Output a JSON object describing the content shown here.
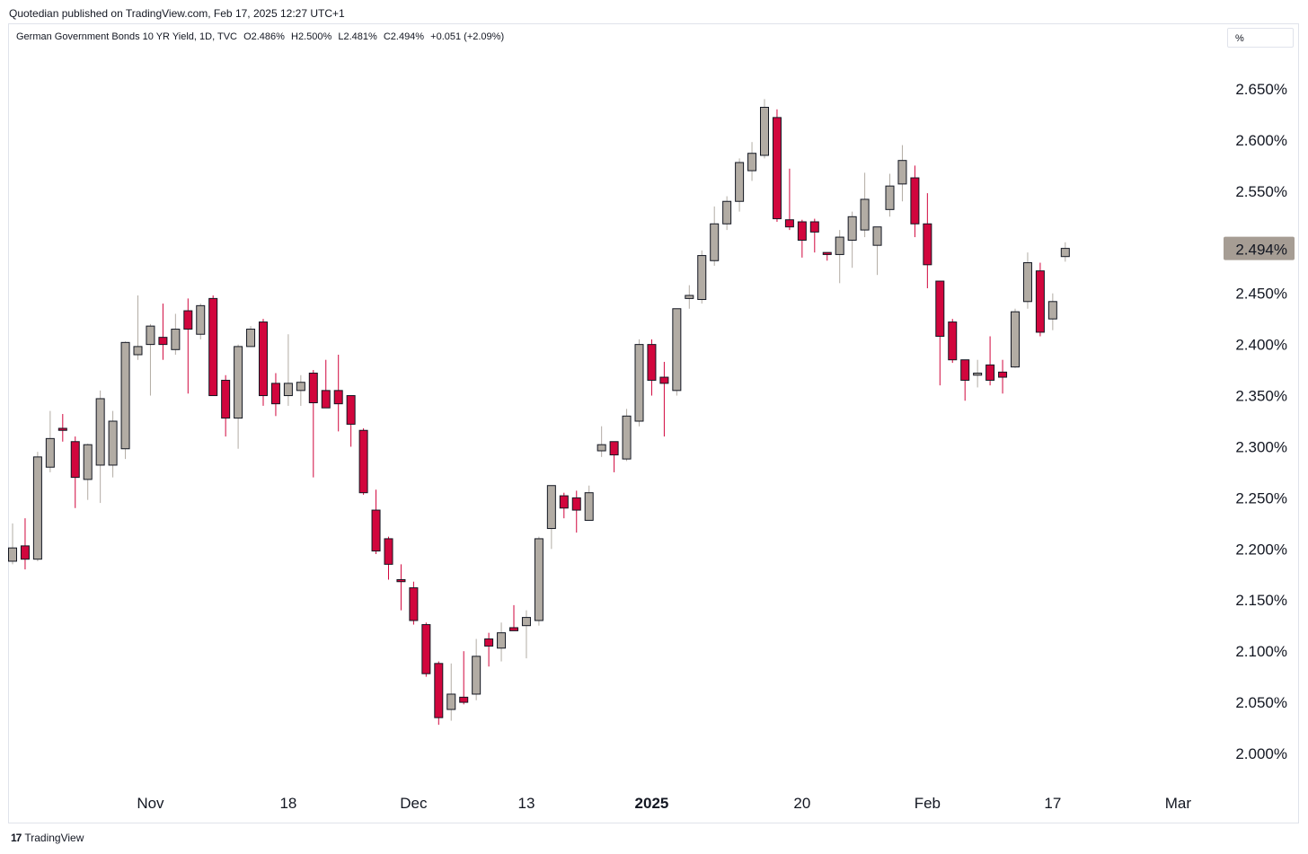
{
  "header": {
    "published_text": "Quotedian published on TradingView.com, Feb 17, 2025 12:27 UTC+1"
  },
  "legend": {
    "symbol": "German Government Bonds 10 YR Yield, 1D, TVC",
    "open": "O2.486%",
    "high": "H2.500%",
    "low": "L2.481%",
    "close": "C2.494%",
    "change": "+0.051 (+2.09%)"
  },
  "unit_selector": {
    "label": "%"
  },
  "footer": {
    "logo_icon": "tradingview-logo-icon",
    "brand": "TradingView"
  },
  "colors": {
    "up": "#b2aca4",
    "down": "#d1063d",
    "outline": "#131722",
    "last_price_bg": "#a69d94"
  },
  "chart_data": {
    "type": "candlestick",
    "y_axis": {
      "ticks": [
        "2.650%",
        "2.600%",
        "2.550%",
        "2.450%",
        "2.400%",
        "2.350%",
        "2.300%",
        "2.250%",
        "2.200%",
        "2.150%",
        "2.100%",
        "2.050%",
        "2.000%"
      ],
      "tick_values": [
        2.65,
        2.6,
        2.55,
        2.45,
        2.4,
        2.35,
        2.3,
        2.25,
        2.2,
        2.15,
        2.1,
        2.05,
        2.0
      ],
      "last_price_label": "2.494%",
      "last_price": 2.494
    },
    "x_axis": {
      "labels": [
        "Nov",
        "18",
        "Dec",
        "13",
        "2025",
        "20",
        "Feb",
        "17",
        "Mar"
      ],
      "label_index": [
        11,
        22,
        32,
        41,
        51,
        63,
        73,
        83,
        93
      ],
      "bold_labels": [
        "2025"
      ]
    },
    "candles": [
      {
        "o": 2.188,
        "h": 2.225,
        "l": 2.185,
        "c": 2.201
      },
      {
        "o": 2.203,
        "h": 2.23,
        "l": 2.18,
        "c": 2.19
      },
      {
        "o": 2.19,
        "h": 2.295,
        "l": 2.188,
        "c": 2.29
      },
      {
        "o": 2.28,
        "h": 2.335,
        "l": 2.275,
        "c": 2.308
      },
      {
        "o": 2.318,
        "h": 2.332,
        "l": 2.305,
        "c": 2.316
      },
      {
        "o": 2.305,
        "h": 2.31,
        "l": 2.24,
        "c": 2.27
      },
      {
        "o": 2.268,
        "h": 2.303,
        "l": 2.248,
        "c": 2.302
      },
      {
        "o": 2.282,
        "h": 2.355,
        "l": 2.245,
        "c": 2.347
      },
      {
        "o": 2.282,
        "h": 2.335,
        "l": 2.27,
        "c": 2.325
      },
      {
        "o": 2.298,
        "h": 2.403,
        "l": 2.288,
        "c": 2.402
      },
      {
        "o": 2.39,
        "h": 2.448,
        "l": 2.385,
        "c": 2.398
      },
      {
        "o": 2.4,
        "h": 2.42,
        "l": 2.35,
        "c": 2.418
      },
      {
        "o": 2.407,
        "h": 2.44,
        "l": 2.385,
        "c": 2.4
      },
      {
        "o": 2.395,
        "h": 2.43,
        "l": 2.39,
        "c": 2.415
      },
      {
        "o": 2.433,
        "h": 2.445,
        "l": 2.352,
        "c": 2.415
      },
      {
        "o": 2.41,
        "h": 2.44,
        "l": 2.405,
        "c": 2.438
      },
      {
        "o": 2.445,
        "h": 2.448,
        "l": 2.35,
        "c": 2.35
      },
      {
        "o": 2.365,
        "h": 2.37,
        "l": 2.31,
        "c": 2.328
      },
      {
        "o": 2.328,
        "h": 2.4,
        "l": 2.298,
        "c": 2.398
      },
      {
        "o": 2.398,
        "h": 2.418,
        "l": 2.398,
        "c": 2.415
      },
      {
        "o": 2.422,
        "h": 2.425,
        "l": 2.34,
        "c": 2.35
      },
      {
        "o": 2.362,
        "h": 2.372,
        "l": 2.33,
        "c": 2.342
      },
      {
        "o": 2.35,
        "h": 2.41,
        "l": 2.34,
        "c": 2.362
      },
      {
        "o": 2.355,
        "h": 2.37,
        "l": 2.34,
        "c": 2.363
      },
      {
        "o": 2.372,
        "h": 2.375,
        "l": 2.27,
        "c": 2.343
      },
      {
        "o": 2.355,
        "h": 2.385,
        "l": 2.34,
        "c": 2.338
      },
      {
        "o": 2.355,
        "h": 2.39,
        "l": 2.315,
        "c": 2.342
      },
      {
        "o": 2.35,
        "h": 2.35,
        "l": 2.3,
        "c": 2.322
      },
      {
        "o": 2.316,
        "h": 2.318,
        "l": 2.253,
        "c": 2.255
      },
      {
        "o": 2.238,
        "h": 2.258,
        "l": 2.195,
        "c": 2.198
      },
      {
        "o": 2.21,
        "h": 2.212,
        "l": 2.17,
        "c": 2.185
      },
      {
        "o": 2.17,
        "h": 2.185,
        "l": 2.14,
        "c": 2.168
      },
      {
        "o": 2.162,
        "h": 2.168,
        "l": 2.126,
        "c": 2.13
      },
      {
        "o": 2.126,
        "h": 2.128,
        "l": 2.075,
        "c": 2.078
      },
      {
        "o": 2.088,
        "h": 2.09,
        "l": 2.028,
        "c": 2.035
      },
      {
        "o": 2.043,
        "h": 2.088,
        "l": 2.032,
        "c": 2.058
      },
      {
        "o": 2.055,
        "h": 2.1,
        "l": 2.048,
        "c": 2.05
      },
      {
        "o": 2.058,
        "h": 2.112,
        "l": 2.052,
        "c": 2.095
      },
      {
        "o": 2.112,
        "h": 2.118,
        "l": 2.085,
        "c": 2.105
      },
      {
        "o": 2.103,
        "h": 2.128,
        "l": 2.09,
        "c": 2.118
      },
      {
        "o": 2.123,
        "h": 2.145,
        "l": 2.12,
        "c": 2.12
      },
      {
        "o": 2.125,
        "h": 2.14,
        "l": 2.093,
        "c": 2.133
      },
      {
        "o": 2.13,
        "h": 2.212,
        "l": 2.125,
        "c": 2.21
      },
      {
        "o": 2.22,
        "h": 2.262,
        "l": 2.2,
        "c": 2.262
      },
      {
        "o": 2.252,
        "h": 2.255,
        "l": 2.23,
        "c": 2.24
      },
      {
        "o": 2.25,
        "h": 2.257,
        "l": 2.216,
        "c": 2.238
      },
      {
        "o": 2.228,
        "h": 2.262,
        "l": 2.228,
        "c": 2.255
      },
      {
        "o": 2.296,
        "h": 2.32,
        "l": 2.29,
        "c": 2.302
      },
      {
        "o": 2.305,
        "h": 2.305,
        "l": 2.275,
        "c": 2.292
      },
      {
        "o": 2.288,
        "h": 2.337,
        "l": 2.286,
        "c": 2.33
      },
      {
        "o": 2.325,
        "h": 2.405,
        "l": 2.32,
        "c": 2.4
      },
      {
        "o": 2.4,
        "h": 2.405,
        "l": 2.35,
        "c": 2.365
      },
      {
        "o": 2.368,
        "h": 2.383,
        "l": 2.31,
        "c": 2.362
      },
      {
        "o": 2.355,
        "h": 2.435,
        "l": 2.35,
        "c": 2.435
      },
      {
        "o": 2.445,
        "h": 2.458,
        "l": 2.435,
        "c": 2.448
      },
      {
        "o": 2.444,
        "h": 2.492,
        "l": 2.44,
        "c": 2.487
      },
      {
        "o": 2.482,
        "h": 2.535,
        "l": 2.477,
        "c": 2.518
      },
      {
        "o": 2.518,
        "h": 2.545,
        "l": 2.512,
        "c": 2.54
      },
      {
        "o": 2.54,
        "h": 2.582,
        "l": 2.53,
        "c": 2.578
      },
      {
        "o": 2.57,
        "h": 2.598,
        "l": 2.56,
        "c": 2.587
      },
      {
        "o": 2.585,
        "h": 2.64,
        "l": 2.582,
        "c": 2.632
      },
      {
        "o": 2.622,
        "h": 2.63,
        "l": 2.52,
        "c": 2.523
      },
      {
        "o": 2.522,
        "h": 2.572,
        "l": 2.512,
        "c": 2.515
      },
      {
        "o": 2.52,
        "h": 2.522,
        "l": 2.485,
        "c": 2.502
      },
      {
        "o": 2.52,
        "h": 2.523,
        "l": 2.49,
        "c": 2.51
      },
      {
        "o": 2.49,
        "h": 2.49,
        "l": 2.482,
        "c": 2.488
      },
      {
        "o": 2.488,
        "h": 2.512,
        "l": 2.46,
        "c": 2.505
      },
      {
        "o": 2.502,
        "h": 2.53,
        "l": 2.475,
        "c": 2.525
      },
      {
        "o": 2.512,
        "h": 2.568,
        "l": 2.505,
        "c": 2.542
      },
      {
        "o": 2.497,
        "h": 2.515,
        "l": 2.468,
        "c": 2.515
      },
      {
        "o": 2.532,
        "h": 2.567,
        "l": 2.525,
        "c": 2.555
      },
      {
        "o": 2.557,
        "h": 2.595,
        "l": 2.54,
        "c": 2.58
      },
      {
        "o": 2.563,
        "h": 2.575,
        "l": 2.505,
        "c": 2.518
      },
      {
        "o": 2.518,
        "h": 2.548,
        "l": 2.455,
        "c": 2.478
      },
      {
        "o": 2.462,
        "h": 2.462,
        "l": 2.36,
        "c": 2.408
      },
      {
        "o": 2.422,
        "h": 2.425,
        "l": 2.382,
        "c": 2.385
      },
      {
        "o": 2.385,
        "h": 2.385,
        "l": 2.345,
        "c": 2.365
      },
      {
        "o": 2.37,
        "h": 2.385,
        "l": 2.358,
        "c": 2.372
      },
      {
        "o": 2.38,
        "h": 2.408,
        "l": 2.36,
        "c": 2.365
      },
      {
        "o": 2.373,
        "h": 2.385,
        "l": 2.352,
        "c": 2.368
      },
      {
        "o": 2.378,
        "h": 2.435,
        "l": 2.377,
        "c": 2.432
      },
      {
        "o": 2.442,
        "h": 2.49,
        "l": 2.435,
        "c": 2.48
      },
      {
        "o": 2.472,
        "h": 2.48,
        "l": 2.408,
        "c": 2.412
      },
      {
        "o": 2.425,
        "h": 2.45,
        "l": 2.414,
        "c": 2.442
      },
      {
        "o": 2.486,
        "h": 2.5,
        "l": 2.481,
        "c": 2.494
      }
    ]
  }
}
